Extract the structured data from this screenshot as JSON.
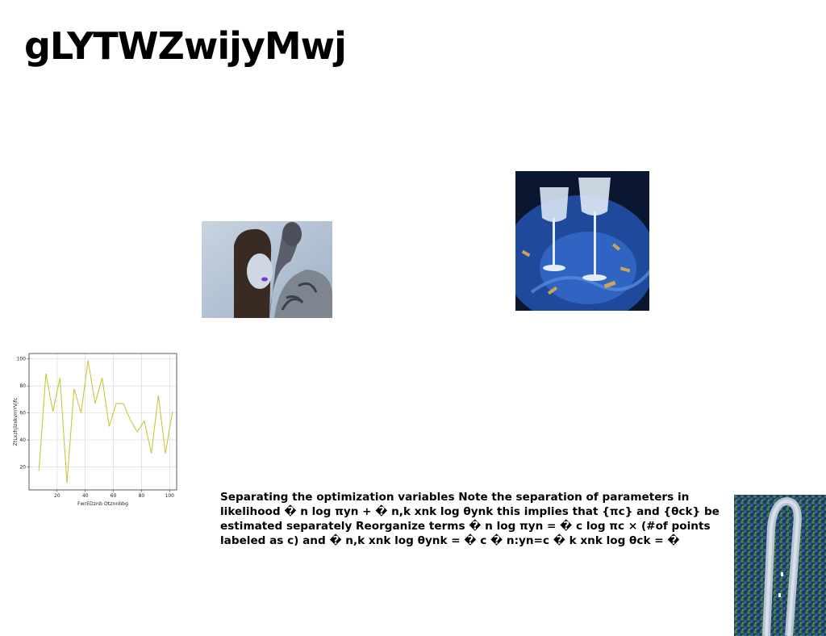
{
  "title": "gLYTWZwijyMwj",
  "paragraph": "Separating the optimization variables Note the separation of parameters in likelihood � n log πyn + � n,k xnk log θynk this implies that {πc} and {θck} be estimated separately Reorganize terms � n log πyn = � c log πc × (#of points labeled as c) and � n,k xnk log θynk = � c � n:yn=c � k xnk log θck = �",
  "images": [
    {
      "name": "photo-couple",
      "subject": "woman with purple lips beside tattooed man"
    },
    {
      "name": "photo-glasses",
      "subject": "two crystal glasses on blue table"
    },
    {
      "name": "photo-aerial",
      "subject": "aerial view of curved road through forest"
    }
  ],
  "chart_data": {
    "type": "line",
    "title": "",
    "xlabel": "FwrEDznb Otznnbbg",
    "ylabel": "ZtLxzhjlzxkvmYVjfc",
    "x": [
      7,
      12,
      17,
      22,
      27,
      32,
      37,
      42,
      47,
      52,
      57,
      62,
      67,
      72,
      77,
      82,
      87,
      92,
      97,
      102
    ],
    "y": [
      17,
      89,
      61,
      86,
      8,
      78,
      60,
      99,
      67,
      86,
      50,
      67,
      67,
      55,
      46,
      54,
      30,
      73,
      30,
      61
    ],
    "xlim": [
      0,
      105
    ],
    "ylim": [
      3,
      104
    ],
    "xticks": [
      20,
      40,
      60,
      80,
      100
    ],
    "yticks": [
      20,
      40,
      60,
      80,
      100
    ],
    "grid": true,
    "line_color": "#c8c83c"
  }
}
